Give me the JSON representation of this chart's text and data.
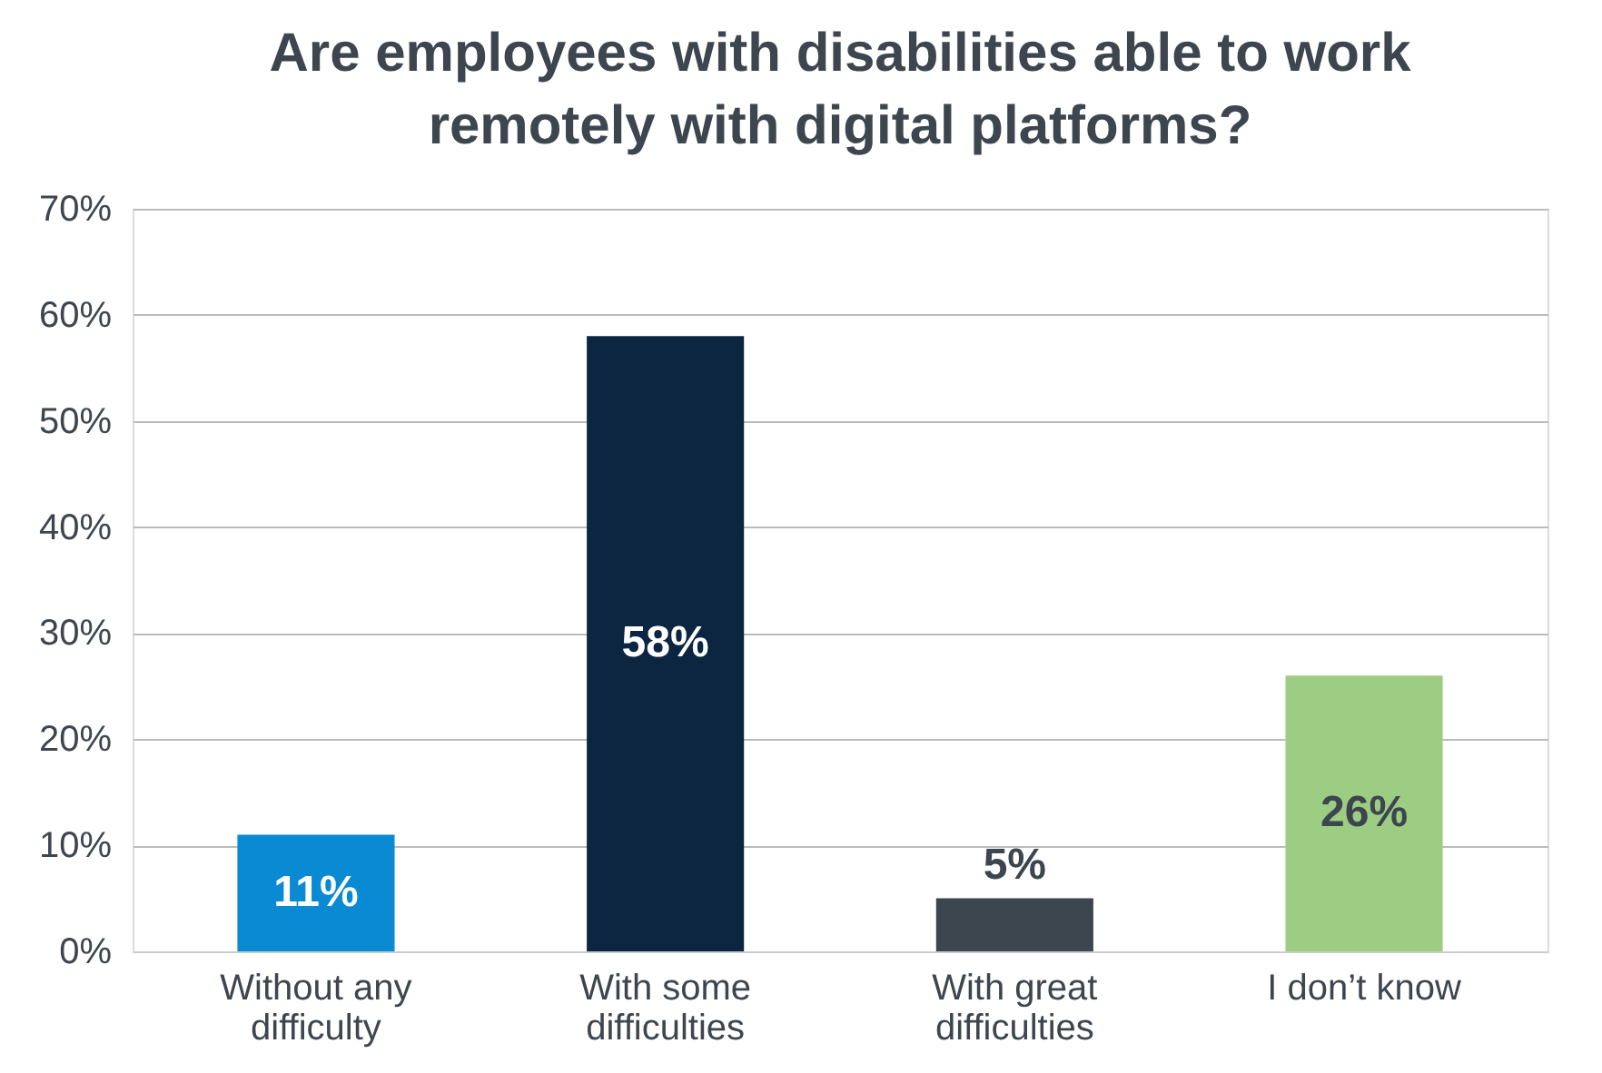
{
  "chart_data": {
    "type": "bar",
    "title": "Are employees with disabilities able to work remotely with digital platforms?",
    "categories": [
      "Without any difficulty",
      "With some difficulties",
      "With great difficulties",
      "I don’t know"
    ],
    "values": [
      11,
      58,
      5,
      26
    ],
    "colors": [
      "#0a8ad2",
      "#0c2641",
      "#3d464f",
      "#9dcd83"
    ],
    "ylim": [
      0,
      70
    ],
    "yticks": [
      {
        "value": 0,
        "label": "0%"
      },
      {
        "value": 10,
        "label": "10%"
      },
      {
        "value": 20,
        "label": "20%"
      },
      {
        "value": 30,
        "label": "30%"
      },
      {
        "value": 40,
        "label": "40%"
      },
      {
        "value": 50,
        "label": "50%"
      },
      {
        "value": 60,
        "label": "60%"
      },
      {
        "value": 70,
        "label": "70%"
      }
    ],
    "value_labels": [
      "11%",
      "58%",
      "5%",
      "26%"
    ],
    "grid": "y"
  }
}
